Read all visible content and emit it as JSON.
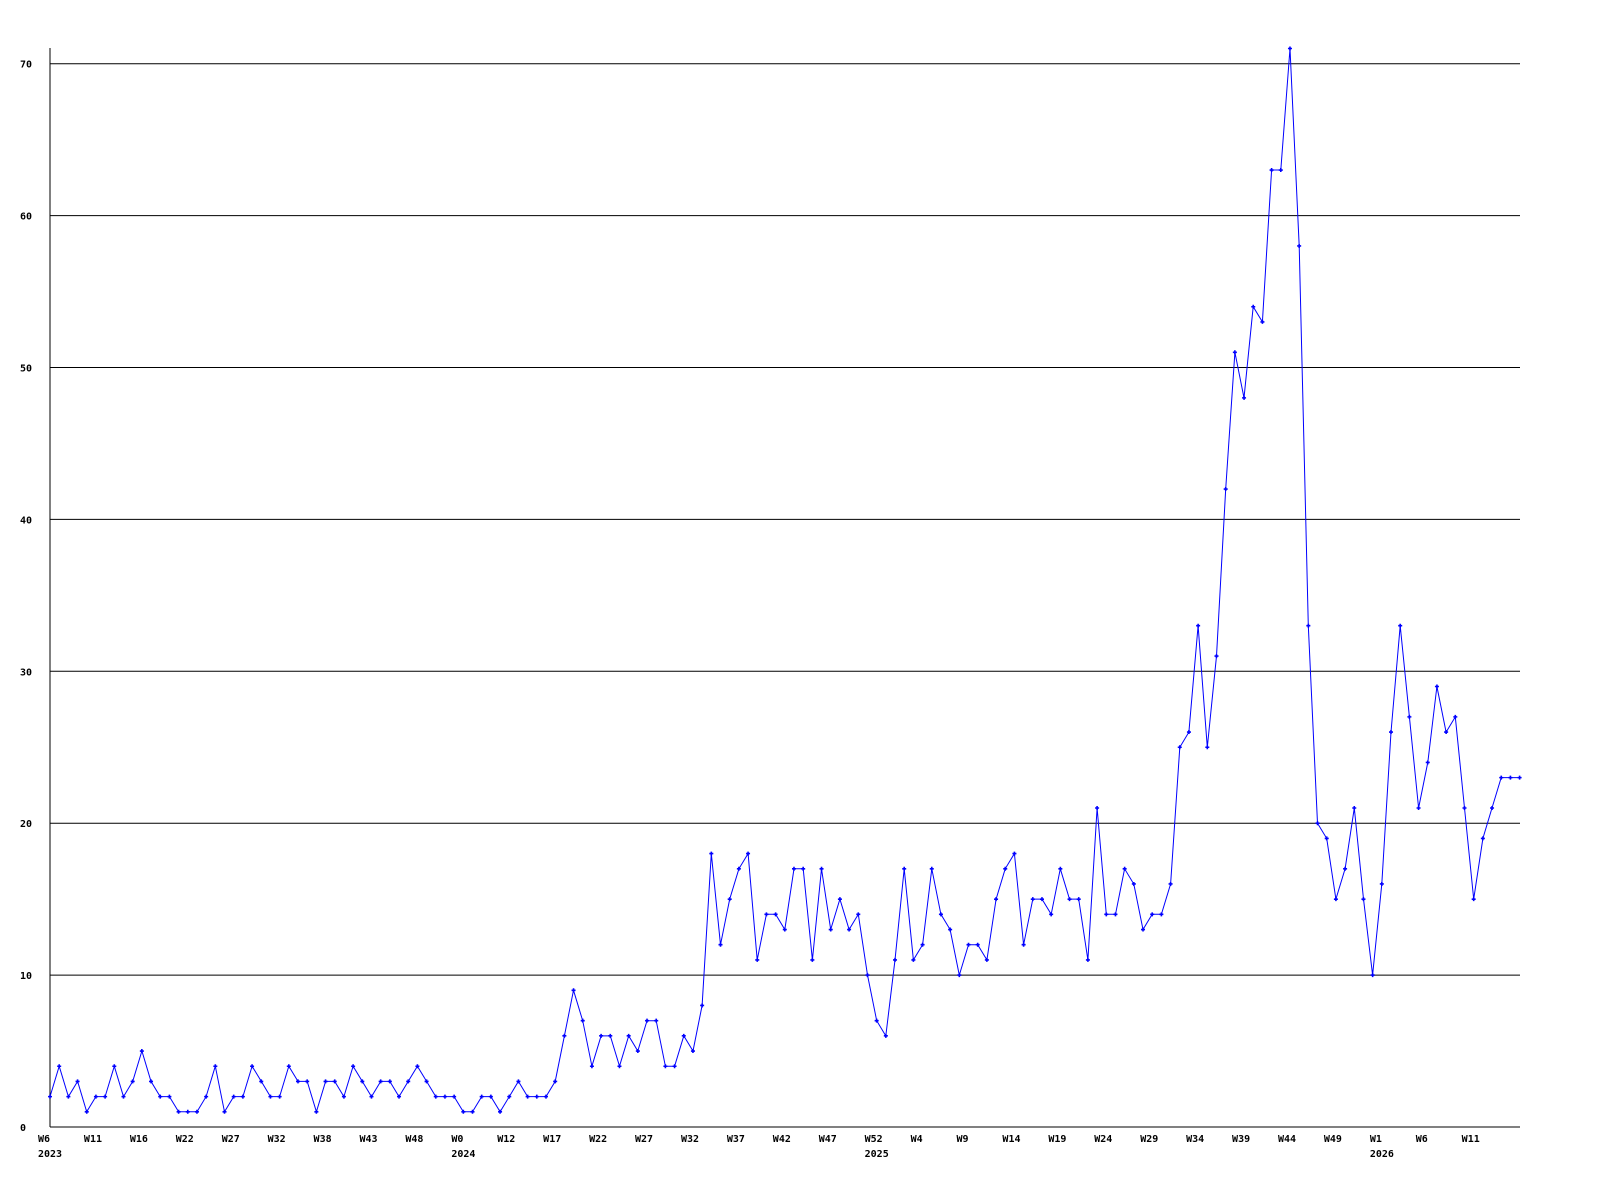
{
  "chart_data": {
    "type": "line",
    "title": "",
    "xlabel": "",
    "ylabel": "",
    "ylim": [
      0,
      71
    ],
    "y_ticks": [
      0,
      10,
      20,
      30,
      40,
      50,
      60,
      70
    ],
    "grid": "horizontal",
    "x_tick_interval_weeks": 5,
    "x_tick_labels": [
      "W6",
      "W11",
      "W16",
      "W22",
      "W27",
      "W32",
      "W38",
      "W43",
      "W48",
      "W0",
      "W12",
      "W17",
      "W22",
      "W27",
      "W32",
      "W37",
      "W42",
      "W47",
      "W52",
      "W4",
      "W9",
      "W14",
      "W19",
      "W24",
      "W29",
      "W34",
      "W39",
      "W44",
      "W49",
      "W1",
      "W6",
      "W11"
    ],
    "year_labels": [
      {
        "label": "2023",
        "at_tick": 0
      },
      {
        "label": "2024",
        "at_tick": 9
      },
      {
        "label": "2025",
        "at_tick": 18
      },
      {
        "label": "2026",
        "at_tick": 29
      }
    ],
    "series": [
      {
        "color": "#0000ff",
        "values": [
          2,
          4,
          2,
          3,
          1,
          2,
          2,
          4,
          2,
          3,
          5,
          3,
          2,
          2,
          1,
          1,
          1,
          2,
          4,
          1,
          2,
          2,
          4,
          3,
          2,
          2,
          4,
          3,
          3,
          1,
          3,
          3,
          2,
          4,
          3,
          2,
          3,
          3,
          2,
          3,
          4,
          3,
          2,
          2,
          2,
          1,
          1,
          2,
          2,
          1,
          2,
          3,
          2,
          2,
          2,
          3,
          6,
          9,
          7,
          4,
          6,
          6,
          4,
          6,
          5,
          7,
          7,
          4,
          4,
          6,
          5,
          8,
          18,
          12,
          15,
          17,
          18,
          11,
          14,
          14,
          13,
          17,
          17,
          11,
          17,
          13,
          15,
          13,
          14,
          10,
          7,
          6,
          11,
          17,
          11,
          12,
          17,
          14,
          13,
          10,
          12,
          12,
          11,
          15,
          17,
          18,
          12,
          15,
          15,
          14,
          17,
          15,
          15,
          11,
          21,
          14,
          14,
          17,
          16,
          13,
          14,
          14,
          16,
          25,
          26,
          33,
          25,
          31,
          42,
          51,
          48,
          54,
          53,
          63,
          63,
          71,
          58,
          33,
          20,
          19,
          15,
          17,
          21,
          15,
          10,
          16,
          26,
          33,
          27,
          21,
          24,
          29,
          26,
          27,
          21,
          15,
          19,
          21,
          23,
          23,
          23
        ]
      }
    ]
  }
}
